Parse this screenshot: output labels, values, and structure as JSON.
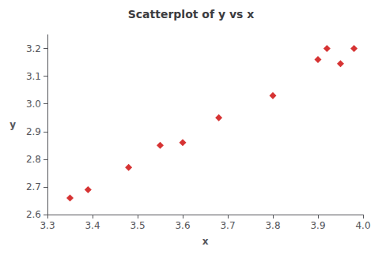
{
  "chart_data": {
    "type": "scatter",
    "title": "Scatterplot of y vs x",
    "xlabel": "x",
    "ylabel": "y",
    "x": [
      3.35,
      3.39,
      3.48,
      3.55,
      3.6,
      3.68,
      3.8,
      3.9,
      3.92,
      3.95,
      3.98
    ],
    "y": [
      2.66,
      2.69,
      2.77,
      2.85,
      2.86,
      2.95,
      3.03,
      3.16,
      3.2,
      3.145,
      3.2
    ],
    "color": "#cc0000",
    "marker": "diamond",
    "xlim": [
      3.3,
      4.0
    ],
    "xticks": [
      3.3,
      3.4,
      3.5,
      3.6,
      3.7,
      3.8,
      3.9,
      {
        "value": 4.0,
        "label": "4.0"
      }
    ],
    "ylim": [
      2.6,
      3.25
    ],
    "yticks": [
      2.6,
      2.7,
      2.8,
      2.9,
      {
        "value": 3.0,
        "label": "3.0"
      },
      3.1,
      3.2
    ],
    "grid": false
  }
}
